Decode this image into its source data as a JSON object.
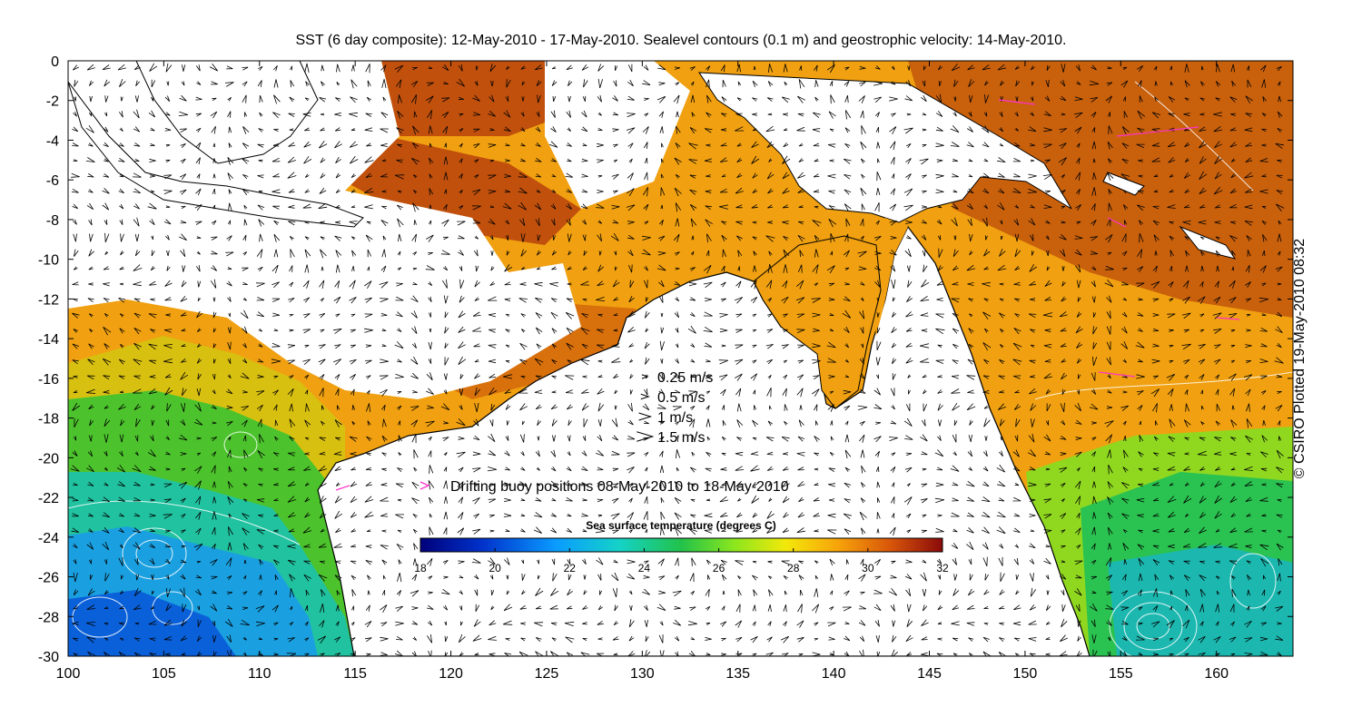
{
  "title": "SST (6 day composite): 12-May-2010 - 17-May-2010. Sealevel contours (0.1 m) and geostrophic velocity: 14-May-2010.",
  "credit": "© CSIRO Plotted 19-May-2010 08:32",
  "axes": {
    "x_ticks": [
      "100",
      "105",
      "110",
      "115",
      "120",
      "125",
      "130",
      "135",
      "140",
      "145",
      "150",
      "155",
      "160"
    ],
    "y_ticks": [
      "0",
      "-2",
      "-4",
      "-6",
      "-8",
      "-10",
      "-12",
      "-14",
      "-16",
      "-18",
      "-20",
      "-22",
      "-24",
      "-26",
      "-28",
      "-30"
    ],
    "xlim": [
      100,
      164
    ],
    "ylim": [
      -30,
      0
    ]
  },
  "velocity_legend": [
    {
      "label": "0.25 m/s",
      "speed": 0.25
    },
    {
      "label": "0.5 m/s",
      "speed": 0.5
    },
    {
      "label": "1 m/s",
      "speed": 1
    },
    {
      "label": "1.5 m/s",
      "speed": 1.5
    }
  ],
  "buoy_legend": {
    "label": "Drifting buoy positions 08-May-2010 to 18-May-2010",
    "color": "#ff33cc"
  },
  "colorbar": {
    "title": "Sea surface temperature (degrees C)",
    "ticks": [
      "18",
      "20",
      "22",
      "24",
      "26",
      "28",
      "30",
      "32"
    ],
    "range": [
      18,
      32
    ]
  },
  "colors": {
    "land": "#ffffff",
    "coast": "#000000",
    "contour": "#ffffff",
    "missing": "#ffffff"
  }
}
